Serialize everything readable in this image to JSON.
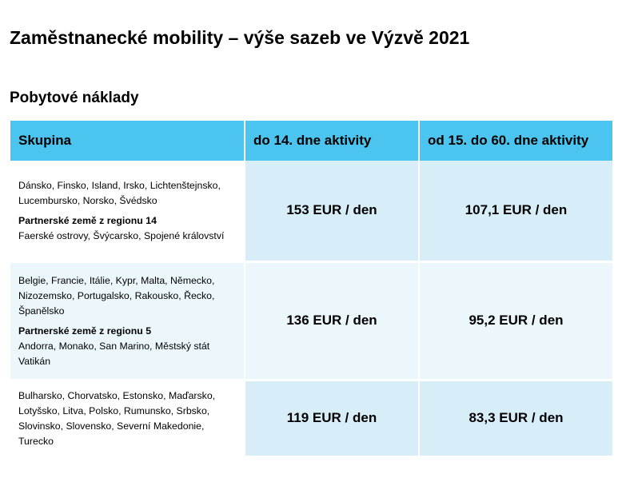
{
  "title": "Zaměstnanecké mobility – výše sazeb ve Výzvě 2021",
  "section_title": "Pobytové náklady",
  "table": {
    "headers": [
      "Skupina",
      "do 14. dne aktivity",
      "od 15. do 60. dne aktivity"
    ],
    "rows": [
      {
        "countries": "Dánsko, Finsko, Island, Irsko, Lichtenštejnsko, Lucembursko, Norsko, Švédsko",
        "region_label": "Partnerské země z regionu 14",
        "region_countries": "Faerské ostrovy, Švýcarsko, Spojené království",
        "rate_to_14": "153 EUR / den",
        "rate_15_60": "107,1 EUR / den"
      },
      {
        "countries": "Belgie, Francie, Itálie, Kypr, Malta, Německo, Nizozemsko, Portugalsko, Rakousko, Řecko, Španělsko",
        "region_label": "Partnerské země z regionu 5",
        "region_countries": "Andorra, Monako, San Marino, Městský stát Vatikán",
        "rate_to_14": "136 EUR / den",
        "rate_15_60": "95,2 EUR / den"
      },
      {
        "countries": "Bulharsko, Chorvatsko, Estonsko, Maďarsko, Lotyšsko, Litva, Polsko, Rumunsko, Srbsko, Slovinsko, Slovensko, Severní Makedonie, Turecko",
        "rate_to_14": "119 EUR / den",
        "rate_15_60": "83,3 EUR / den"
      }
    ]
  },
  "colors": {
    "header_background": "#4bc5ef",
    "row_shade_dark": "#d7eef9",
    "row_shade_light": "#ecf7fc"
  }
}
